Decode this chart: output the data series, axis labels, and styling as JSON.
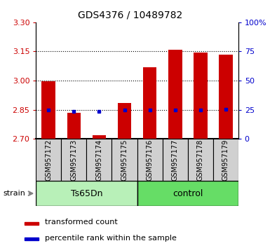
{
  "title": "GDS4376 / 10489782",
  "samples": [
    "GSM957172",
    "GSM957173",
    "GSM957174",
    "GSM957175",
    "GSM957176",
    "GSM957177",
    "GSM957178",
    "GSM957179"
  ],
  "red_values": [
    2.995,
    2.835,
    2.72,
    2.885,
    3.07,
    3.16,
    3.145,
    3.135
  ],
  "blue_values": [
    2.849,
    2.843,
    2.843,
    2.849,
    2.849,
    2.849,
    2.848,
    2.851
  ],
  "ymin": 2.7,
  "ymax": 3.3,
  "yticks_red": [
    2.7,
    2.85,
    3.0,
    3.15,
    3.3
  ],
  "yticks_blue": [
    0,
    25,
    50,
    75,
    100
  ],
  "groups": [
    {
      "label": "Ts65Dn",
      "start": 0,
      "end": 4,
      "color": "#b8f0b8"
    },
    {
      "label": "control",
      "start": 4,
      "end": 8,
      "color": "#66dd66"
    }
  ],
  "red_color": "#cc0000",
  "blue_color": "#0000cc",
  "bar_width": 0.55,
  "legend": [
    {
      "label": "transformed count",
      "color": "#cc0000"
    },
    {
      "label": "percentile rank within the sample",
      "color": "#0000cc"
    }
  ],
  "tick_color_left": "#cc0000",
  "tick_color_right": "#0000cc",
  "group_label": "strain",
  "xtick_bg_color": "#d0d0d0",
  "grid_color": "black",
  "grid_linestyle": ":",
  "grid_linewidth": 0.8
}
